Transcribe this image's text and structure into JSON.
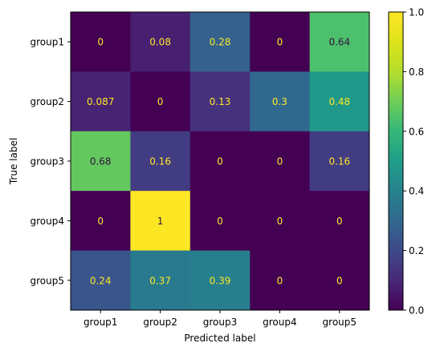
{
  "chart_data": {
    "type": "heatmap",
    "title": "",
    "xlabel": "Predicted label",
    "ylabel": "True label",
    "x_categories": [
      "group1",
      "group2",
      "group3",
      "group4",
      "group5"
    ],
    "y_categories": [
      "group1",
      "group2",
      "group3",
      "group4",
      "group5"
    ],
    "values": [
      [
        0,
        0.08,
        0.28,
        0,
        0.64
      ],
      [
        0.087,
        0,
        0.13,
        0.3,
        0.48
      ],
      [
        0.68,
        0.16,
        0,
        0,
        0.16
      ],
      [
        0,
        1,
        0,
        0,
        0
      ],
      [
        0.24,
        0.37,
        0.39,
        0,
        0
      ]
    ],
    "value_labels": [
      [
        "0",
        "0.08",
        "0.28",
        "0",
        "0.64"
      ],
      [
        "0.087",
        "0",
        "0.13",
        "0.3",
        "0.48"
      ],
      [
        "0.68",
        "0.16",
        "0",
        "0",
        "0.16"
      ],
      [
        "0",
        "1",
        "0",
        "0",
        "0"
      ],
      [
        "0.24",
        "0.37",
        "0.39",
        "0",
        "0"
      ]
    ],
    "colorbar": {
      "range": [
        0,
        1
      ],
      "ticks": [
        "0.0",
        "0.2",
        "0.4",
        "0.6",
        "0.8",
        "1.0"
      ],
      "colormap": "viridis"
    },
    "label_colors": {
      "light": "#fde725",
      "dark": "#30123b"
    },
    "grid": false
  }
}
